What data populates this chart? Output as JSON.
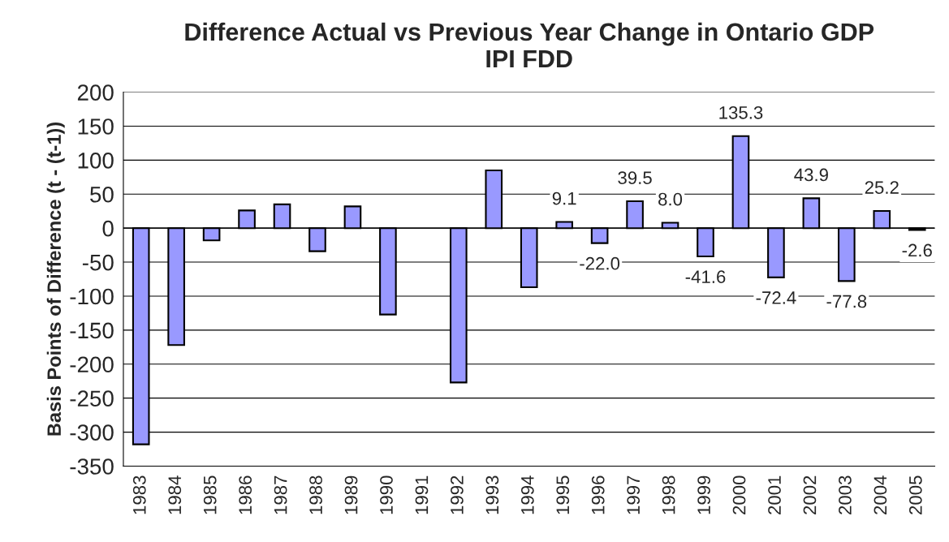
{
  "chart_data": {
    "type": "bar",
    "title": "Difference Actual vs Previous Year Change in Ontario GDP\nIPI FDD",
    "ylabel": "Basis Points of Difference (t - (t-1))",
    "categories": [
      "1983",
      "1984",
      "1985",
      "1986",
      "1987",
      "1988",
      "1989",
      "1990",
      "1991",
      "1992",
      "1993",
      "1994",
      "1995",
      "1996",
      "1997",
      "1998",
      "1999",
      "2000",
      "2001",
      "2002",
      "2003",
      "2004",
      "2005"
    ],
    "values": [
      -318,
      -172,
      -18,
      26,
      35,
      -34,
      32,
      -127,
      null,
      -227,
      85,
      -87,
      9.1,
      -22.0,
      39.5,
      8.0,
      -41.6,
      135.3,
      -72.4,
      43.9,
      -77.8,
      25.2,
      -2.6
    ],
    "value_labels": [
      null,
      null,
      null,
      null,
      null,
      null,
      null,
      null,
      null,
      null,
      null,
      null,
      "9.1",
      "-22.0",
      "39.5",
      "8.0",
      "-41.6",
      "135.3",
      "-72.4",
      "43.9",
      "-77.8",
      "25.2",
      "-2.6"
    ],
    "color": "#9999ff",
    "ylim": [
      -350,
      200
    ],
    "yticks": [
      -350,
      -300,
      -250,
      -200,
      -150,
      -100,
      -50,
      0,
      50,
      100,
      150,
      200
    ],
    "grid": "y"
  }
}
